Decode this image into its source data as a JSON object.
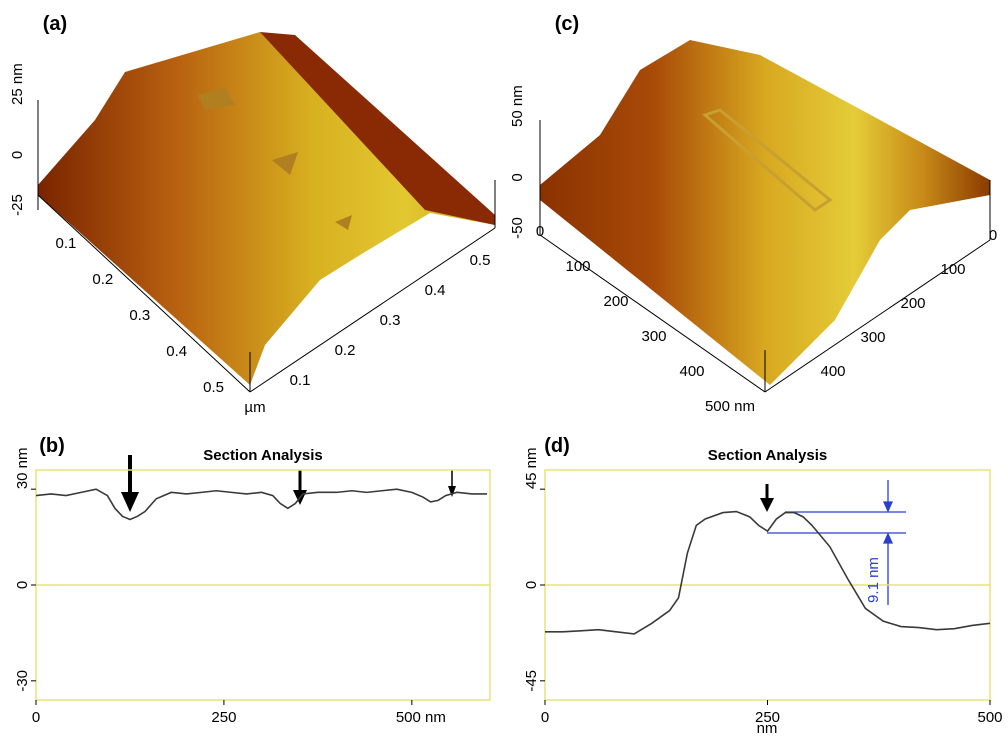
{
  "chart_data": [
    {
      "type": "surface",
      "panel_label": "(a)",
      "xlabel": "µm",
      "xlim": [
        0,
        0.52
      ],
      "xticks": [
        0.1,
        0.2,
        0.3,
        0.4,
        0.5
      ],
      "ylim": [
        0,
        0.52
      ],
      "yticks": [
        0.1,
        0.2,
        0.3,
        0.4,
        0.5
      ],
      "zlim": [
        -25,
        25
      ],
      "zticks": [
        -25,
        0,
        {
          "value": 25,
          "label": "25 nm"
        }
      ]
    },
    {
      "type": "line",
      "panel_label": "(b)",
      "title": "Section Analysis",
      "x": [
        0,
        20,
        40,
        60,
        80,
        95,
        105,
        115,
        125,
        135,
        145,
        160,
        180,
        200,
        220,
        240,
        260,
        280,
        300,
        315,
        325,
        335,
        345,
        355,
        375,
        400,
        420,
        440,
        460,
        480,
        500,
        515,
        525,
        535,
        545,
        560,
        580,
        600
      ],
      "series": [
        {
          "color": "#3a3a3a",
          "values": [
            28,
            28.5,
            28,
            29,
            30,
            28,
            24,
            21.5,
            20.5,
            21.5,
            23,
            27,
            29,
            28.5,
            29,
            29.5,
            29,
            28.5,
            29,
            28,
            25.5,
            24,
            25.5,
            28.5,
            29,
            29,
            29.5,
            29,
            29.5,
            30,
            29,
            27.5,
            26,
            26.5,
            28,
            29,
            28.5,
            28.5
          ]
        }
      ],
      "xlim": [
        0,
        604
      ],
      "xticks": [
        0,
        250,
        {
          "value": 500,
          "label": "500 nm"
        }
      ],
      "ylim": [
        -36,
        36
      ],
      "yticks": [
        -30,
        0,
        {
          "value": 30,
          "label": "30 nm"
        }
      ],
      "frame_color": "#e8e27a",
      "zero_line": true
    },
    {
      "type": "surface",
      "panel_label": "(c)",
      "xlim": [
        0,
        500
      ],
      "xticks": [
        0,
        100,
        200,
        300,
        400,
        {
          "value": 500,
          "label": "500 nm"
        }
      ],
      "ylim": [
        0,
        450
      ],
      "yticks": [
        0,
        100,
        200,
        300,
        400
      ],
      "zlim": [
        -50,
        50
      ],
      "zticks": [
        -50,
        0,
        {
          "value": 50,
          "label": "50 nm"
        }
      ]
    },
    {
      "type": "line",
      "panel_label": "(d)",
      "title": "Section Analysis",
      "xlabel": "nm",
      "annotation": "9.1 nm",
      "x": [
        0,
        20,
        40,
        60,
        80,
        100,
        120,
        140,
        150,
        160,
        170,
        180,
        200,
        215,
        230,
        240,
        250,
        260,
        270,
        280,
        290,
        300,
        320,
        340,
        360,
        380,
        400,
        420,
        440,
        460,
        480,
        500
      ],
      "series": [
        {
          "color": "#3a3a3a",
          "values": [
            -22,
            -22,
            -21.5,
            -21,
            -22,
            -23,
            -18,
            -12,
            -6,
            15,
            28,
            31,
            34,
            34.5,
            32,
            28,
            25.3,
            31,
            34,
            34,
            32,
            28,
            18,
            3,
            -11,
            -17,
            -19.5,
            -20,
            -21,
            -20.5,
            -19,
            -18
          ]
        }
      ],
      "xlim": [
        0,
        500
      ],
      "xticks": [
        0,
        250,
        500
      ],
      "ylim": [
        -54,
        54
      ],
      "yticks": [
        -45,
        0,
        {
          "value": 45,
          "label": "45 nm"
        }
      ],
      "frame_color": "#e8e27a",
      "zero_line": true
    }
  ]
}
